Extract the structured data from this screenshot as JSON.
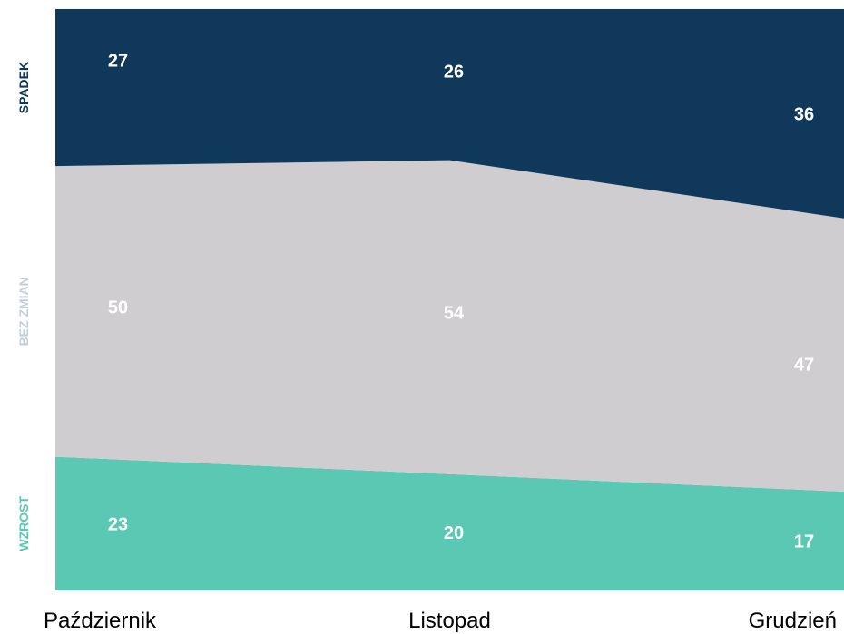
{
  "chart_data": {
    "type": "area",
    "stacked": true,
    "normalized_to": 100,
    "categories": [
      "Październik",
      "Listopad",
      "Grudzień"
    ],
    "series": [
      {
        "name": "WZROST",
        "values": [
          23,
          20,
          17
        ],
        "color": "#5bc8b4"
      },
      {
        "name": "BEZ ZMIAN",
        "values": [
          50,
          54,
          47
        ],
        "color": "#d0cdd0"
      },
      {
        "name": "SPADEK",
        "values": [
          27,
          26,
          36
        ],
        "color": "#10385a"
      }
    ],
    "series_label_colors": {
      "WZROST": "#5bc8b4",
      "BEZ ZMIAN": "#c4cedb",
      "SPADEK": "#10385a"
    },
    "ylim": [
      0,
      100
    ],
    "grid": false,
    "legend": "left (rotated series labels)"
  }
}
